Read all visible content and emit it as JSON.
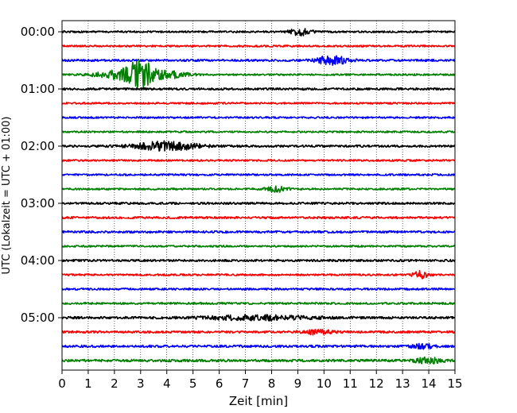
{
  "chart_data": {
    "type": "line",
    "title": "",
    "xlabel": "Zeit  [min]",
    "ylabel": "UTC (Lokalzeit = UTC + 01:00)",
    "xlim": [
      0,
      15
    ],
    "x_ticks": [
      0,
      1,
      2,
      3,
      4,
      5,
      6,
      7,
      8,
      9,
      10,
      11,
      12,
      13,
      14,
      15
    ],
    "y_ticks": [
      "00:00",
      "01:00",
      "02:00",
      "03:00",
      "04:00",
      "05:00"
    ],
    "grid": "vertical dotted",
    "trace_colors": [
      "#000000",
      "#ff0000",
      "#0000ff",
      "#008000"
    ],
    "series": [
      {
        "start": "00:00",
        "color": "#000000",
        "noise": 1.0,
        "events": [
          {
            "t": 9.1,
            "amp": 4,
            "width": 0.4
          }
        ]
      },
      {
        "start": "00:15",
        "color": "#ff0000",
        "noise": 1.0,
        "events": []
      },
      {
        "start": "00:30",
        "color": "#0000ff",
        "noise": 1.2,
        "events": [
          {
            "t": 10.3,
            "amp": 5,
            "width": 0.6
          }
        ]
      },
      {
        "start": "00:45",
        "color": "#008000",
        "noise": 1.0,
        "events": [
          {
            "t": 3.0,
            "amp": 14,
            "width": 0.5
          },
          {
            "t": 2.2,
            "amp": 5,
            "width": 0.9
          },
          {
            "t": 4.0,
            "amp": 4,
            "width": 0.8
          }
        ]
      },
      {
        "start": "01:00",
        "color": "#000000",
        "noise": 1.2,
        "events": []
      },
      {
        "start": "01:15",
        "color": "#ff0000",
        "noise": 1.0,
        "events": []
      },
      {
        "start": "01:30",
        "color": "#0000ff",
        "noise": 1.0,
        "events": []
      },
      {
        "start": "01:45",
        "color": "#008000",
        "noise": 1.0,
        "events": []
      },
      {
        "start": "02:00",
        "color": "#000000",
        "noise": 1.2,
        "events": [
          {
            "t": 4.0,
            "amp": 5,
            "width": 1.2
          }
        ]
      },
      {
        "start": "02:15",
        "color": "#ff0000",
        "noise": 1.0,
        "events": []
      },
      {
        "start": "02:30",
        "color": "#0000ff",
        "noise": 1.0,
        "events": []
      },
      {
        "start": "02:45",
        "color": "#008000",
        "noise": 1.0,
        "events": [
          {
            "t": 8.2,
            "amp": 3,
            "width": 0.4
          }
        ]
      },
      {
        "start": "03:00",
        "color": "#000000",
        "noise": 1.2,
        "events": []
      },
      {
        "start": "03:15",
        "color": "#ff0000",
        "noise": 1.2,
        "events": []
      },
      {
        "start": "03:30",
        "color": "#0000ff",
        "noise": 1.2,
        "events": []
      },
      {
        "start": "03:45",
        "color": "#008000",
        "noise": 1.0,
        "events": []
      },
      {
        "start": "04:00",
        "color": "#000000",
        "noise": 1.2,
        "events": []
      },
      {
        "start": "04:15",
        "color": "#ff0000",
        "noise": 1.0,
        "events": [
          {
            "t": 13.7,
            "amp": 4,
            "width": 0.3
          }
        ]
      },
      {
        "start": "04:30",
        "color": "#0000ff",
        "noise": 1.1,
        "events": []
      },
      {
        "start": "04:45",
        "color": "#008000",
        "noise": 1.1,
        "events": []
      },
      {
        "start": "05:00",
        "color": "#000000",
        "noise": 1.3,
        "events": [
          {
            "t": 7.5,
            "amp": 2.5,
            "width": 2.0
          }
        ]
      },
      {
        "start": "05:15",
        "color": "#ff0000",
        "noise": 1.2,
        "events": [
          {
            "t": 9.7,
            "amp": 2.5,
            "width": 0.6
          }
        ]
      },
      {
        "start": "05:30",
        "color": "#0000ff",
        "noise": 1.3,
        "events": [
          {
            "t": 13.8,
            "amp": 2.5,
            "width": 0.4
          }
        ]
      },
      {
        "start": "05:45",
        "color": "#008000",
        "noise": 1.4,
        "events": [
          {
            "t": 14.0,
            "amp": 3,
            "width": 0.5
          }
        ]
      }
    ]
  }
}
